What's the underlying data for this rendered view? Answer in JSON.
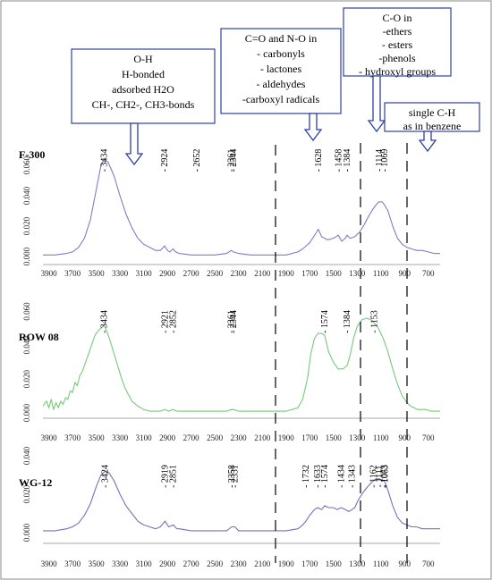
{
  "figure": {
    "annotation_boxes": [
      {
        "id": "oh",
        "lines": [
          "O-H",
          "H-bonded",
          "adsorbed H2O",
          "CH-, CH2-, CH3-bonds"
        ]
      },
      {
        "id": "co_no",
        "lines": [
          "C=O and N-O in",
          "- carbonyls",
          "- lactones",
          "- aldehydes",
          "-carboxyl radicals"
        ]
      },
      {
        "id": "c_o",
        "lines": [
          "C-O in",
          "-ethers",
          "- esters",
          "-phenols",
          "- hydroxyl groups"
        ]
      },
      {
        "id": "ch",
        "lines": [
          "single C-H",
          "as in  benzene"
        ]
      }
    ],
    "colors": {
      "F-300": "#7b7fc4",
      "ROW 08": "#79c879",
      "WG-12": "#6f73bc",
      "box_border": "#2e3fa5",
      "arrow": "#2e3fa5"
    }
  },
  "chart_data": [
    {
      "type": "line",
      "title": "F-300",
      "xlim": [
        3950,
        600
      ],
      "x_ticks": [
        "3900",
        "3700",
        "3500",
        "3300",
        "3100",
        "2900",
        "2700",
        "2500",
        "2300",
        "2100",
        "1900",
        "1700",
        "1500",
        "1300",
        "1100",
        "900",
        "700"
      ],
      "ylim": [
        0,
        0.07
      ],
      "y_ticks": [
        "0.000",
        "0.020",
        "0.040",
        "0.060"
      ],
      "peak_labels": [
        "3434",
        "2924",
        "2652",
        "2361",
        "2344",
        "1628",
        "1458",
        "1384",
        "1114",
        "1069"
      ],
      "series": [
        {
          "x": [
            3950,
            3850,
            3750,
            3700,
            3650,
            3600,
            3550,
            3500,
            3460,
            3434,
            3400,
            3350,
            3300,
            3250,
            3200,
            3150,
            3100,
            3050,
            3000,
            2960,
            2924,
            2900,
            2880,
            2852,
            2830,
            2800,
            2700,
            2600,
            2500,
            2400,
            2361,
            2344,
            2300,
            2200,
            2100,
            2000,
            1900,
            1800,
            1760,
            1700,
            1650,
            1628,
            1600,
            1550,
            1500,
            1458,
            1430,
            1400,
            1384,
            1360,
            1320,
            1280,
            1240,
            1200,
            1160,
            1130,
            1114,
            1090,
            1069,
            1040,
            1000,
            960,
            920,
            880,
            840,
            800,
            750,
            700,
            650,
            600
          ],
          "y": [
            0.001,
            0.001,
            0.002,
            0.003,
            0.006,
            0.012,
            0.024,
            0.044,
            0.06,
            0.064,
            0.062,
            0.053,
            0.04,
            0.028,
            0.019,
            0.012,
            0.008,
            0.006,
            0.004,
            0.004,
            0.007,
            0.004,
            0.003,
            0.005,
            0.003,
            0.002,
            0.001,
            0.001,
            0.001,
            0.002,
            0.004,
            0.003,
            0.002,
            0.001,
            0.001,
            0.001,
            0.001,
            0.003,
            0.005,
            0.009,
            0.015,
            0.018,
            0.013,
            0.011,
            0.012,
            0.014,
            0.01,
            0.012,
            0.014,
            0.012,
            0.013,
            0.016,
            0.021,
            0.027,
            0.032,
            0.035,
            0.036,
            0.036,
            0.034,
            0.03,
            0.02,
            0.012,
            0.008,
            0.006,
            0.005,
            0.004,
            0.004,
            0.003,
            0.002,
            0.002
          ]
        }
      ]
    },
    {
      "type": "line",
      "title": "ROW 08",
      "xlim": [
        3950,
        600
      ],
      "x_ticks": [
        "3900",
        "3700",
        "3500",
        "3300",
        "3100",
        "2900",
        "2700",
        "2500",
        "2300",
        "2100",
        "1900",
        "1700",
        "1500",
        "1300",
        "1100",
        "900",
        "700"
      ],
      "ylim": [
        0,
        0.065
      ],
      "y_ticks": [
        "0.000",
        "0.020",
        "0.040",
        "0.060"
      ],
      "peak_labels": [
        "3434",
        "2921",
        "2852",
        "2361",
        "2344",
        "1574",
        "1384",
        "1153"
      ],
      "series": [
        {
          "x": [
            3950,
            3920,
            3900,
            3880,
            3860,
            3840,
            3820,
            3800,
            3780,
            3760,
            3740,
            3720,
            3700,
            3680,
            3660,
            3640,
            3620,
            3600,
            3570,
            3540,
            3510,
            3480,
            3460,
            3434,
            3410,
            3380,
            3350,
            3320,
            3290,
            3260,
            3230,
            3200,
            3150,
            3100,
            3050,
            3000,
            2960,
            2921,
            2890,
            2852,
            2820,
            2780,
            2700,
            2600,
            2500,
            2400,
            2361,
            2344,
            2300,
            2200,
            2100,
            2000,
            1900,
            1800,
            1760,
            1720,
            1690,
            1660,
            1630,
            1600,
            1574,
            1540,
            1500,
            1460,
            1420,
            1384,
            1360,
            1330,
            1300,
            1260,
            1220,
            1180,
            1153,
            1120,
            1080,
            1040,
            1000,
            960,
            920,
            880,
            850,
            820,
            790,
            760,
            720,
            680,
            640,
            600
          ],
          "y": [
            0.004,
            0.007,
            0.003,
            0.008,
            0.002,
            0.006,
            0.003,
            0.007,
            0.005,
            0.009,
            0.008,
            0.013,
            0.012,
            0.018,
            0.016,
            0.022,
            0.024,
            0.028,
            0.034,
            0.04,
            0.046,
            0.049,
            0.05,
            0.052,
            0.048,
            0.042,
            0.035,
            0.028,
            0.021,
            0.015,
            0.011,
            0.007,
            0.004,
            0.002,
            0.001,
            0.001,
            0.001,
            0.002,
            0.001,
            0.002,
            0.001,
            0.001,
            0.001,
            0.001,
            0.001,
            0.001,
            0.002,
            0.002,
            0.001,
            0.001,
            0.001,
            0.001,
            0.001,
            0.003,
            0.008,
            0.02,
            0.035,
            0.044,
            0.047,
            0.047,
            0.046,
            0.036,
            0.03,
            0.026,
            0.026,
            0.028,
            0.034,
            0.044,
            0.051,
            0.055,
            0.056,
            0.055,
            0.053,
            0.05,
            0.044,
            0.036,
            0.026,
            0.017,
            0.01,
            0.006,
            0.004,
            0.003,
            0.002,
            0.002,
            0.002,
            0.001,
            0.001,
            0.001
          ]
        }
      ]
    },
    {
      "type": "line",
      "title": "WG-12",
      "xlim": [
        3950,
        600
      ],
      "x_ticks": [
        "3900",
        "3700",
        "3500",
        "3300",
        "3100",
        "2900",
        "2700",
        "2500",
        "2300",
        "2100",
        "1900",
        "1700",
        "1500",
        "1300",
        "1100",
        "900",
        "700"
      ],
      "ylim": [
        0,
        0.04
      ],
      "y_ticks": [
        "0.000",
        "0.020",
        "0.040"
      ],
      "peak_labels": [
        "3424",
        "2919",
        "2851",
        "2358",
        "2331",
        "1732",
        "1633",
        "1574",
        "1434",
        "1343",
        "1162",
        "1111",
        "1073",
        "1063"
      ],
      "series": [
        {
          "x": [
            3950,
            3850,
            3750,
            3700,
            3650,
            3600,
            3550,
            3500,
            3460,
            3424,
            3390,
            3350,
            3300,
            3250,
            3200,
            3150,
            3100,
            3050,
            3000,
            2960,
            2919,
            2890,
            2851,
            2820,
            2800,
            2700,
            2600,
            2500,
            2400,
            2358,
            2331,
            2300,
            2200,
            2100,
            2000,
            1900,
            1800,
            1760,
            1732,
            1700,
            1660,
            1633,
            1600,
            1574,
            1540,
            1500,
            1470,
            1434,
            1400,
            1370,
            1343,
            1320,
            1290,
            1250,
            1210,
            1180,
            1162,
            1140,
            1111,
            1090,
            1073,
            1063,
            1040,
            1000,
            960,
            920,
            880,
            840,
            800,
            750,
            700,
            650,
            600
          ],
          "y": [
            0.001,
            0.001,
            0.002,
            0.003,
            0.005,
            0.009,
            0.015,
            0.024,
            0.03,
            0.032,
            0.031,
            0.027,
            0.02,
            0.014,
            0.01,
            0.006,
            0.004,
            0.003,
            0.002,
            0.003,
            0.006,
            0.003,
            0.004,
            0.002,
            0.002,
            0.001,
            0.001,
            0.001,
            0.001,
            0.003,
            0.003,
            0.001,
            0.001,
            0.001,
            0.001,
            0.001,
            0.002,
            0.004,
            0.006,
            0.009,
            0.012,
            0.013,
            0.012,
            0.014,
            0.013,
            0.013,
            0.012,
            0.013,
            0.012,
            0.011,
            0.012,
            0.013,
            0.017,
            0.021,
            0.024,
            0.026,
            0.027,
            0.028,
            0.028,
            0.027,
            0.027,
            0.026,
            0.022,
            0.014,
            0.008,
            0.005,
            0.004,
            0.003,
            0.003,
            0.002,
            0.002,
            0.002,
            0.002
          ]
        }
      ]
    }
  ]
}
